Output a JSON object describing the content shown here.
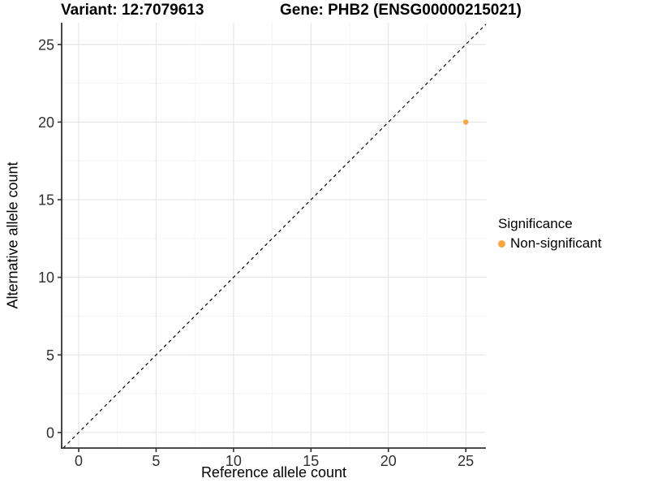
{
  "chart_data": {
    "type": "scatter",
    "title_left": "Variant: 12:7079613",
    "title_right": "Gene: PHB2 (ENSG00000215021)",
    "xlabel": "Reference allele count",
    "ylabel": "Alternative allele count",
    "xlim": [
      -1.1,
      26.3
    ],
    "ylim": [
      -1.0,
      26.4
    ],
    "xticks": [
      0,
      5,
      10,
      15,
      20,
      25
    ],
    "yticks": [
      0,
      5,
      10,
      15,
      20,
      25
    ],
    "minor_xticks": [
      2.5,
      7.5,
      12.5,
      17.5,
      22.5
    ],
    "minor_yticks": [
      2.5,
      7.5,
      12.5,
      17.5,
      22.5
    ],
    "grid": true,
    "legend_position": "right",
    "series": [
      {
        "name": "Non-significant",
        "color": "#FAA43C",
        "points": [
          {
            "x": 25,
            "y": 20
          }
        ]
      }
    ],
    "reference_line": {
      "equation": "y = x",
      "style": "dashed",
      "color": "#000000"
    },
    "legend": {
      "title": "Significance",
      "items": [
        {
          "label": "Non-significant",
          "color": "#FAA43C"
        }
      ]
    },
    "colors": {
      "background": "#ffffff",
      "grid_major": "#e4e4e4",
      "grid_minor": "#f3f3f3",
      "axis_line": "#333333",
      "tick_mark": "#333333",
      "tick_label": "#303030"
    }
  }
}
